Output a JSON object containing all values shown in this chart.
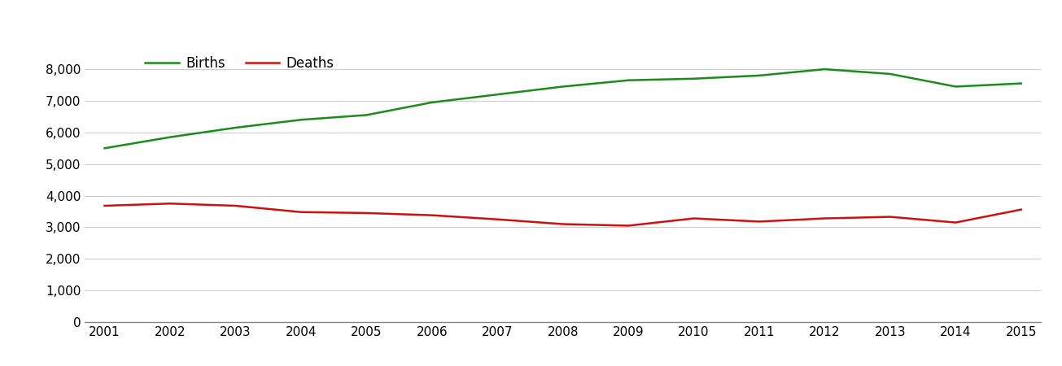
{
  "years": [
    2001,
    2002,
    2003,
    2004,
    2005,
    2006,
    2007,
    2008,
    2009,
    2010,
    2011,
    2012,
    2013,
    2014,
    2015
  ],
  "births": [
    5500,
    5850,
    6150,
    6400,
    6550,
    6950,
    7200,
    7450,
    7650,
    7700,
    7800,
    8000,
    7850,
    7450,
    7550
  ],
  "deaths": [
    3680,
    3750,
    3680,
    3480,
    3450,
    3380,
    3250,
    3100,
    3050,
    3280,
    3180,
    3280,
    3330,
    3150,
    3560
  ],
  "births_color": "#1a8c1a",
  "deaths_color": "#cc1111",
  "line_width": 1.8,
  "ylim": [
    0,
    8800
  ],
  "yticks": [
    0,
    1000,
    2000,
    3000,
    4000,
    5000,
    6000,
    7000,
    8000
  ],
  "background_color": "#ffffff",
  "grid_color": "#cccccc",
  "legend_labels": [
    "Births",
    "Deaths"
  ],
  "tick_fontsize": 11,
  "legend_fontsize": 12
}
